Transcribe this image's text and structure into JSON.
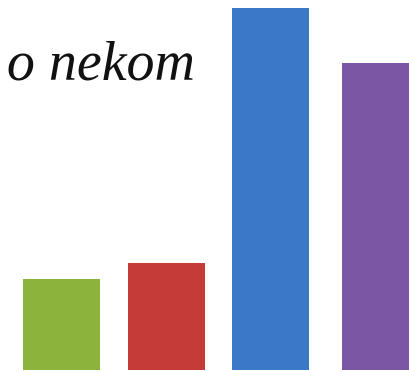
{
  "chart_data": {
    "type": "bar",
    "title": "o nekom",
    "values": [
      91,
      107,
      362,
      307
    ],
    "colors": [
      "#8cb33b",
      "#c43b37",
      "#3b79c6",
      "#7a56a4"
    ]
  }
}
